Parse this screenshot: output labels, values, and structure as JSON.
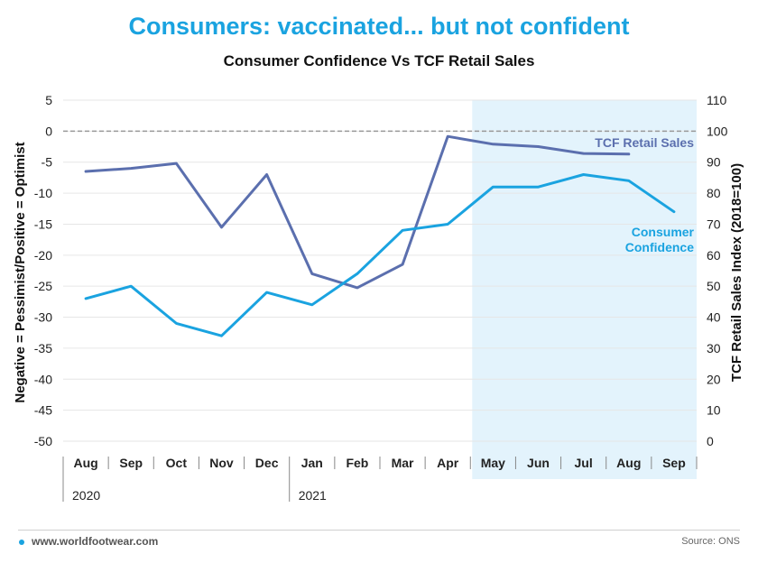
{
  "headline": "Consumers: vaccinated... but not confident",
  "footer": {
    "site": "www.worldfootwear.com",
    "source": "Source: ONS"
  },
  "colors": {
    "headline": "#1aa3e0",
    "consumer_confidence": "#1aa3e0",
    "tcf_retail_sales": "#5b6fae",
    "highlight_band": "#e3f3fc",
    "zero_line": "#999999"
  },
  "chart_data": {
    "type": "line",
    "title": "Consumer Confidence Vs TCF Retail Sales",
    "categories": [
      "Aug",
      "Sep",
      "Oct",
      "Nov",
      "Dec",
      "Jan",
      "Feb",
      "Mar",
      "Apr",
      "May",
      "Jun",
      "Jul",
      "Aug",
      "Sep"
    ],
    "year_labels": [
      {
        "label": "2020",
        "start_index": 0
      },
      {
        "label": "2021",
        "start_index": 5
      }
    ],
    "ylabel_left": "Negative = Pessimist/Positive = Optimist",
    "ylabel_right": "TCF Retail Sales Index (2018=100)",
    "ylim_left": [
      -50,
      5
    ],
    "ylim_right": [
      0,
      110
    ],
    "yticks_left": [
      5,
      0,
      -5,
      -10,
      -15,
      -20,
      -25,
      -30,
      -35,
      -40,
      -45,
      -50
    ],
    "yticks_right": [
      110,
      100,
      90,
      80,
      70,
      60,
      50,
      40,
      30,
      20,
      10,
      0
    ],
    "highlight_start_index": 9,
    "series": [
      {
        "name": "TCF Retail Sales",
        "axis": "right",
        "label": "TCF Retail Sales",
        "values": [
          87,
          88,
          89.6,
          69,
          86,
          54,
          49.5,
          57,
          98.3,
          95.8,
          95,
          92.8,
          92.6,
          null
        ]
      },
      {
        "name": "Consumer Confidence",
        "axis": "left",
        "label_lines": [
          "Consumer",
          "Confidence"
        ],
        "values": [
          -27,
          -25,
          -31,
          -33,
          -26,
          -28,
          -23,
          -16,
          -15,
          -9,
          -9,
          -7,
          -8,
          -13
        ]
      }
    ]
  }
}
